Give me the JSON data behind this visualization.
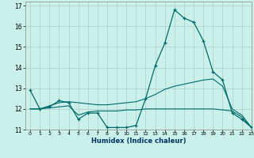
{
  "xlabel": "Humidex (Indice chaleur)",
  "background_color": "#caf0ea",
  "grid_color": "#b0ccc8",
  "line_color": "#006b6b",
  "xlim": [
    -0.5,
    23
  ],
  "ylim": [
    11,
    17.2
  ],
  "yticks": [
    11,
    12,
    13,
    14,
    15,
    16,
    17
  ],
  "xticks": [
    0,
    1,
    2,
    3,
    4,
    5,
    6,
    7,
    8,
    9,
    10,
    11,
    12,
    13,
    14,
    15,
    16,
    17,
    18,
    19,
    20,
    21,
    22,
    23
  ],
  "series1_x": [
    0,
    1,
    2,
    3,
    4,
    5,
    6,
    7,
    8,
    9,
    10,
    11,
    12,
    13,
    14,
    15,
    16,
    17,
    18,
    19,
    20,
    21,
    22,
    23
  ],
  "series1_y": [
    12.9,
    12.0,
    12.1,
    12.4,
    12.3,
    11.5,
    11.8,
    11.8,
    11.1,
    11.1,
    11.1,
    11.2,
    12.5,
    14.1,
    15.2,
    16.8,
    16.4,
    16.2,
    15.3,
    13.8,
    13.4,
    11.8,
    11.5,
    11.1
  ],
  "series2_x": [
    0,
    1,
    2,
    3,
    4,
    5,
    6,
    7,
    8,
    9,
    10,
    11,
    12,
    13,
    14,
    15,
    16,
    17,
    18,
    19,
    20,
    21,
    22,
    23
  ],
  "series2_y": [
    12.0,
    12.0,
    12.15,
    12.3,
    12.35,
    12.3,
    12.25,
    12.2,
    12.2,
    12.25,
    12.3,
    12.35,
    12.5,
    12.7,
    12.95,
    13.1,
    13.2,
    13.3,
    13.4,
    13.45,
    13.1,
    12.0,
    11.7,
    11.1
  ],
  "series3_x": [
    0,
    1,
    2,
    3,
    4,
    5,
    6,
    7,
    8,
    9,
    10,
    11,
    12,
    13,
    14,
    15,
    16,
    17,
    18,
    19,
    20,
    21,
    22,
    23
  ],
  "series3_y": [
    12.0,
    12.0,
    12.05,
    12.1,
    12.15,
    11.7,
    11.85,
    11.9,
    11.9,
    11.9,
    11.95,
    11.95,
    12.0,
    12.0,
    12.0,
    12.0,
    12.0,
    12.0,
    12.0,
    12.0,
    11.95,
    11.9,
    11.6,
    11.1
  ]
}
